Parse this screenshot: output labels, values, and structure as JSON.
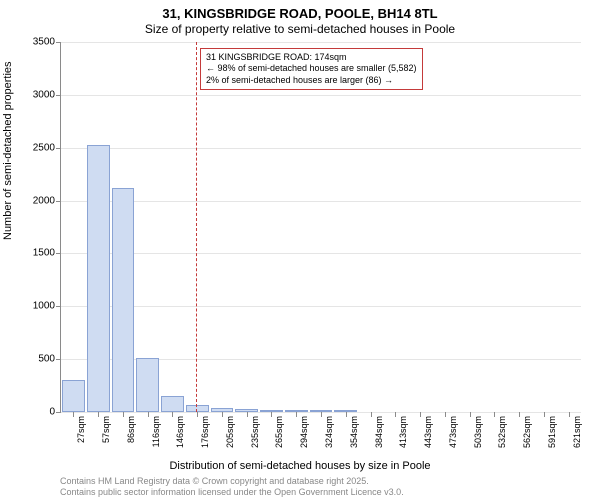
{
  "title_main": "31, KINGSBRIDGE ROAD, POOLE, BH14 8TL",
  "title_sub": "Size of property relative to semi-detached houses in Poole",
  "y_axis_label": "Number of semi-detached properties",
  "x_axis_label": "Distribution of semi-detached houses by size in Poole",
  "footer_line1": "Contains HM Land Registry data © Crown copyright and database right 2025.",
  "footer_line2": "Contains public sector information licensed under the Open Government Licence v3.0.",
  "chart": {
    "type": "bar",
    "background_color": "#ffffff",
    "grid_color": "#e5e5e5",
    "axis_color": "#8a8a8a",
    "bar_fill": "#cfdcf2",
    "bar_border": "#8aa3d4",
    "marker_color": "#c43a3a",
    "ylim": [
      0,
      3500
    ],
    "ytick_step": 500,
    "yticks": [
      0,
      500,
      1000,
      1500,
      2000,
      2500,
      3000,
      3500
    ],
    "x_labels": [
      "27sqm",
      "57sqm",
      "86sqm",
      "116sqm",
      "146sqm",
      "176sqm",
      "205sqm",
      "235sqm",
      "265sqm",
      "294sqm",
      "324sqm",
      "354sqm",
      "384sqm",
      "413sqm",
      "443sqm",
      "473sqm",
      "503sqm",
      "532sqm",
      "562sqm",
      "591sqm",
      "621sqm"
    ],
    "values": [
      300,
      2530,
      2120,
      510,
      150,
      70,
      40,
      25,
      15,
      10,
      5,
      5,
      3,
      0,
      0,
      0,
      0,
      0,
      0,
      0,
      0
    ],
    "marker_x_sqm": 174,
    "x_domain": [
      27,
      621
    ],
    "annotation_lines": [
      "31 KINGSBRIDGE ROAD: 174sqm",
      "← 98% of semi-detached houses are smaller (5,582)",
      "2% of semi-detached houses are larger (86) →"
    ],
    "annotation_border": "#c43a3a"
  }
}
